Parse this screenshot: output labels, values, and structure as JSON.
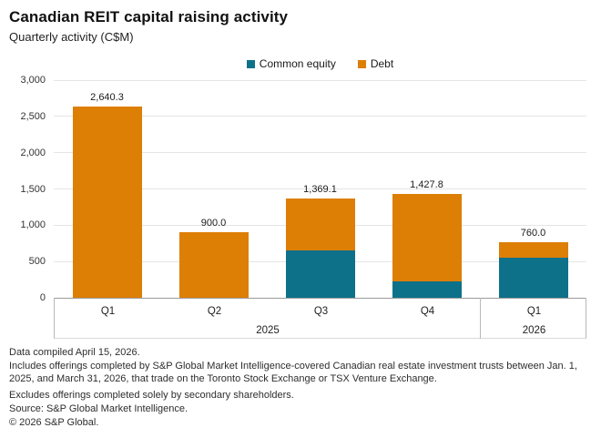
{
  "header": {
    "title": "Canadian REIT capital raising activity",
    "subtitle": "Quarterly activity (C$M)"
  },
  "chart_data": {
    "type": "bar",
    "stacked": true,
    "title": "Canadian REIT capital raising activity",
    "subtitle": "Quarterly activity (C$M)",
    "categories": [
      "Q1",
      "Q2",
      "Q3",
      "Q4",
      "Q1"
    ],
    "group_labels": [
      {
        "label": "2025",
        "span": 4
      },
      {
        "label": "2026",
        "span": 1
      }
    ],
    "series": [
      {
        "name": "Common equity",
        "color": "#0e718a",
        "values": [
          0,
          0,
          650,
          220,
          555
        ]
      },
      {
        "name": "Debt",
        "color": "#dd7e05",
        "values": [
          2640.3,
          900.0,
          719.1,
          1207.8,
          205.0
        ]
      }
    ],
    "totals": [
      2640.3,
      900.0,
      1369.1,
      1427.8,
      760.0
    ],
    "total_labels": [
      "2,640.3",
      "900.0",
      "1,369.1",
      "1,427.8",
      "760.0"
    ],
    "ylim": [
      0,
      3000
    ],
    "ytick_step": 500,
    "ytick_labels": [
      "0",
      "500",
      "1,000",
      "1,500",
      "2,000",
      "2,500",
      "3,000"
    ],
    "grid": true,
    "legend_position": "top-center"
  },
  "footnotes": {
    "compiled": "Data compiled April 15, 2026.",
    "includes": "Includes offerings completed by S&P Global Market Intelligence-covered Canadian real estate investment trusts between Jan. 1, 2025, and March 31, 2026, that trade on the Toronto Stock Exchange or TSX Venture Exchange.",
    "excludes": "Excludes offerings completed solely by secondary shareholders.",
    "source": "Source: S&P Global Market Intelligence.",
    "copyright": "© 2026 S&P Global."
  }
}
